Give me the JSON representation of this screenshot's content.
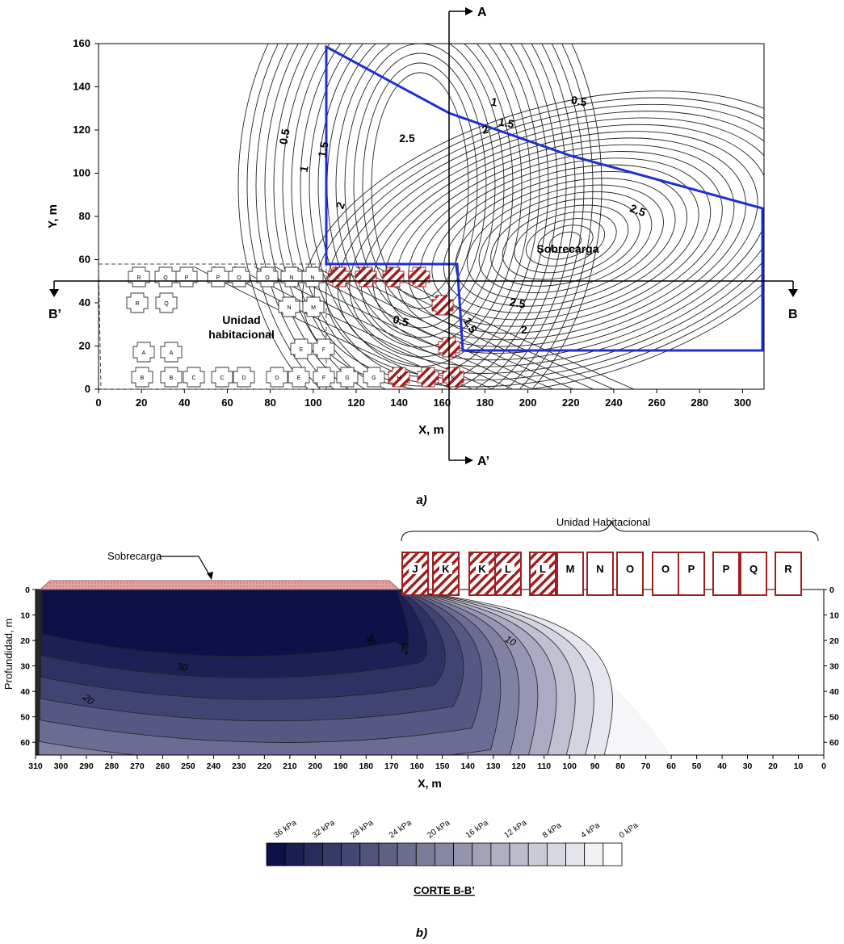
{
  "panel_a": {
    "caption": "a)",
    "xlabel": "X, m",
    "ylabel": "Y, m",
    "xticks": [
      "0",
      "20",
      "40",
      "60",
      "80",
      "100",
      "120",
      "140",
      "160",
      "180",
      "200",
      "220",
      "240",
      "260",
      "280",
      "300"
    ],
    "yticks": [
      "0",
      "20",
      "40",
      "60",
      "80",
      "100",
      "120",
      "140",
      "160"
    ],
    "section_labels": {
      "a": "A",
      "a_prime": "A’",
      "b": "B",
      "b_prime": "B’"
    },
    "area_labels": {
      "overload": "Sobrecarga",
      "housing_line1": "Unidad",
      "housing_line2": "habitacional"
    },
    "contour_labels": [
      "0.5",
      "1",
      "1.5",
      "2",
      "2.5",
      "0.5",
      "1",
      "1.5",
      "2",
      "0.5",
      "1.5",
      "2.5",
      "2.5",
      "2",
      "0.5",
      "1.5"
    ],
    "house_letters": [
      "R",
      "Q",
      "P",
      "P",
      "O",
      "O",
      "N",
      "N",
      "R",
      "Q",
      "N",
      "M",
      "A",
      "A",
      "E",
      "F",
      "B",
      "B",
      "C",
      "C",
      "D",
      "D",
      "E",
      "F",
      "G",
      "G",
      "H",
      "J",
      "K",
      "L",
      "L"
    ]
  },
  "panel_b": {
    "caption": "b)",
    "xlabel": "X, m",
    "ylabel": "Profundidad, m",
    "xticks": [
      "310",
      "300",
      "290",
      "280",
      "270",
      "260",
      "250",
      "240",
      "230",
      "220",
      "210",
      "200",
      "190",
      "180",
      "170",
      "160",
      "150",
      "140",
      "130",
      "120",
      "110",
      "100",
      "90",
      "80",
      "70",
      "60",
      "50",
      "40",
      "30",
      "20",
      "10",
      "0"
    ],
    "depth_ticks": [
      "0",
      "10",
      "20",
      "30",
      "40",
      "50",
      "60"
    ],
    "overload_label": "Sobrecarga",
    "housing_label": "Unidad Habitacional",
    "contour_labels": [
      "30",
      "30",
      "20",
      "20",
      "10"
    ],
    "buildings": [
      {
        "letter": "J",
        "hatched": true
      },
      {
        "letter": "K",
        "hatched": true
      },
      {
        "letter": "K",
        "hatched": true
      },
      {
        "letter": "L",
        "hatched": true
      },
      {
        "letter": "L",
        "hatched": true
      },
      {
        "letter": "M",
        "hatched": false
      },
      {
        "letter": "N",
        "hatched": false
      },
      {
        "letter": "O",
        "hatched": false
      },
      {
        "letter": "O",
        "hatched": false
      },
      {
        "letter": "P",
        "hatched": false
      },
      {
        "letter": "P",
        "hatched": false
      },
      {
        "letter": "Q",
        "hatched": false
      },
      {
        "letter": "R",
        "hatched": false
      }
    ],
    "legend_title": "CORTE B-B’",
    "legend_labels": [
      "36 kPa",
      "32 kPa",
      "28 kPa",
      "24 kPa",
      "20 kPa",
      "16 kPa",
      "12 kPa",
      "8 kPa",
      "4 kPa",
      "0 kPa"
    ]
  },
  "colors": {
    "overload_outline": "#1f2fd6",
    "building_red": "#a01f1f",
    "legend_dark": "#0d1147",
    "legend_light": "#ffffff",
    "overload_fill": "#e6a3a3"
  }
}
